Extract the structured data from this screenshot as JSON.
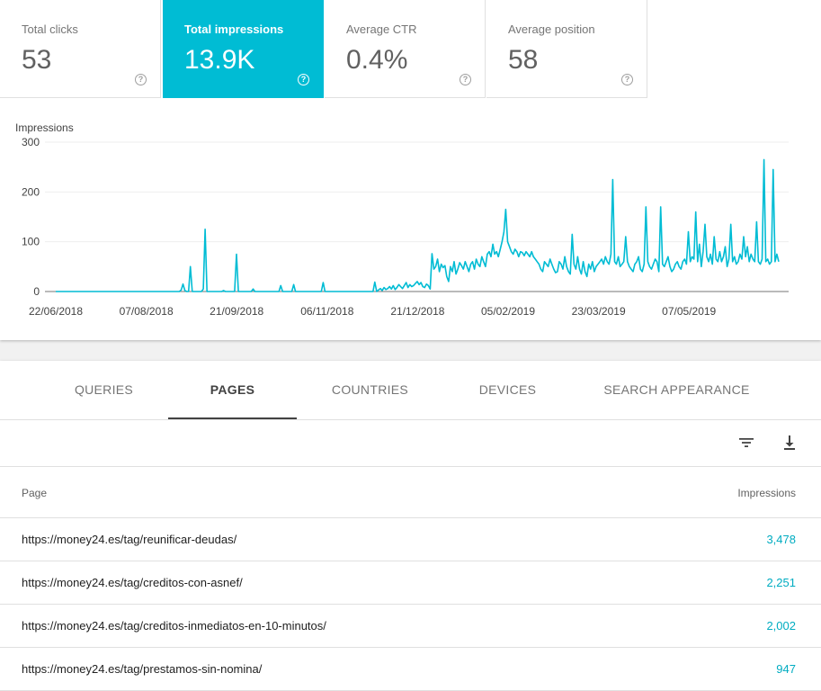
{
  "metrics": [
    {
      "label": "Total clicks",
      "value": "53",
      "active": false
    },
    {
      "label": "Total impressions",
      "value": "13.9K",
      "active": true
    },
    {
      "label": "Average CTR",
      "value": "0.4%",
      "active": false
    },
    {
      "label": "Average position",
      "value": "58",
      "active": false
    }
  ],
  "help_glyph": "?",
  "colors": {
    "accent": "#00bcd4",
    "link": "#00acc1"
  },
  "chart_data": {
    "type": "line",
    "ylabel": "Impressions",
    "ylim": [
      0,
      300
    ],
    "yticks": [
      "300",
      "200",
      "100",
      "0"
    ],
    "xticks": [
      "22/06/2018",
      "07/08/2018",
      "21/09/2018",
      "06/11/2018",
      "21/12/2018",
      "05/02/2019",
      "23/03/2019",
      "07/05/2019"
    ],
    "grid": true,
    "series": [
      {
        "values": [
          0,
          0,
          0,
          0,
          0,
          0,
          0,
          0,
          0,
          0,
          0,
          0,
          0,
          0,
          0,
          0,
          0,
          0,
          0,
          0,
          0,
          0,
          0,
          0,
          0,
          0,
          0,
          0,
          0,
          0,
          0,
          0,
          0,
          0,
          0,
          0,
          0,
          0,
          0,
          0,
          0,
          0,
          0,
          0,
          0,
          0,
          0,
          0,
          0,
          0,
          0,
          0,
          0,
          0,
          0,
          0,
          0,
          0,
          0,
          0,
          0,
          0,
          0,
          0,
          0,
          0,
          0,
          0,
          3,
          15,
          2,
          0,
          0,
          50,
          0,
          0,
          0,
          0,
          0,
          0,
          5,
          125,
          0,
          0,
          0,
          0,
          0,
          0,
          0,
          0,
          0,
          2,
          0,
          0,
          0,
          0,
          0,
          0,
          75,
          0,
          0,
          0,
          0,
          0,
          0,
          0,
          0,
          5,
          0,
          0,
          0,
          0,
          0,
          0,
          0,
          0,
          0,
          0,
          0,
          0,
          0,
          0,
          12,
          0,
          0,
          0,
          0,
          0,
          0,
          14,
          0,
          0,
          0,
          0,
          0,
          0,
          0,
          0,
          0,
          0,
          0,
          0,
          0,
          0,
          0,
          18,
          0,
          0,
          0,
          0,
          0,
          0,
          0,
          0,
          0,
          0,
          0,
          0,
          0,
          0,
          0,
          0,
          0,
          0,
          0,
          0,
          0,
          0,
          0,
          0,
          0,
          0,
          0,
          19,
          0,
          3,
          6,
          2,
          8,
          4,
          6,
          10,
          5,
          12,
          4,
          8,
          14,
          10,
          6,
          12,
          18,
          8,
          14,
          10,
          12,
          16,
          20,
          14,
          18,
          10,
          8,
          15,
          12,
          5,
          76,
          45,
          50,
          65,
          40,
          55,
          48,
          52,
          30,
          20,
          50,
          40,
          60,
          35,
          45,
          58,
          52,
          45,
          60,
          50,
          40,
          55,
          60,
          45,
          65,
          55,
          50,
          70,
          60,
          50,
          75,
          80,
          70,
          95,
          75,
          80,
          70,
          85,
          100,
          120,
          165,
          100,
          90,
          80,
          75,
          85,
          80,
          70,
          80,
          78,
          72,
          80,
          75,
          70,
          80,
          70,
          65,
          60,
          55,
          45,
          40,
          60,
          55,
          50,
          65,
          55,
          45,
          38,
          40,
          60,
          55,
          45,
          70,
          50,
          40,
          35,
          115,
          55,
          45,
          70,
          45,
          35,
          60,
          40,
          30,
          55,
          45,
          60,
          40,
          50,
          55,
          60,
          65,
          55,
          70,
          60,
          55,
          75,
          225,
          60,
          55,
          70,
          50,
          55,
          60,
          110,
          60,
          50,
          45,
          40,
          55,
          60,
          70,
          45,
          40,
          55,
          170,
          60,
          50,
          45,
          55,
          65,
          60,
          40,
          170,
          55,
          50,
          60,
          70,
          50,
          40,
          45,
          55,
          60,
          50,
          45,
          60,
          65,
          55,
          120,
          60,
          70,
          65,
          160,
          60,
          95,
          50,
          80,
          135,
          70,
          60,
          75,
          55,
          110,
          65,
          60,
          80,
          60,
          70,
          90,
          50,
          65,
          135,
          60,
          70,
          55,
          60,
          75,
          65,
          110,
          70,
          90,
          60,
          75,
          65,
          60,
          140,
          60,
          55,
          65,
          265,
          60,
          65,
          55,
          60,
          245,
          60,
          75,
          60
        ]
      }
    ]
  },
  "tabs": [
    {
      "label": "QUERIES",
      "active": false
    },
    {
      "label": "PAGES",
      "active": true
    },
    {
      "label": "COUNTRIES",
      "active": false
    },
    {
      "label": "DEVICES",
      "active": false
    },
    {
      "label": "SEARCH APPEARANCE",
      "active": false
    }
  ],
  "toolbar": {
    "filter_icon": "filter-icon",
    "download_icon": "download-icon"
  },
  "table": {
    "headers": {
      "page": "Page",
      "impressions": "Impressions"
    },
    "rows": [
      {
        "page": "https://money24.es/tag/reunificar-deudas/",
        "impressions": "3,478"
      },
      {
        "page": "https://money24.es/tag/creditos-con-asnef/",
        "impressions": "2,251"
      },
      {
        "page": "https://money24.es/tag/creditos-inmediatos-en-10-minutos/",
        "impressions": "2,002"
      },
      {
        "page": "https://money24.es/tag/prestamos-sin-nomina/",
        "impressions": "947"
      }
    ]
  }
}
